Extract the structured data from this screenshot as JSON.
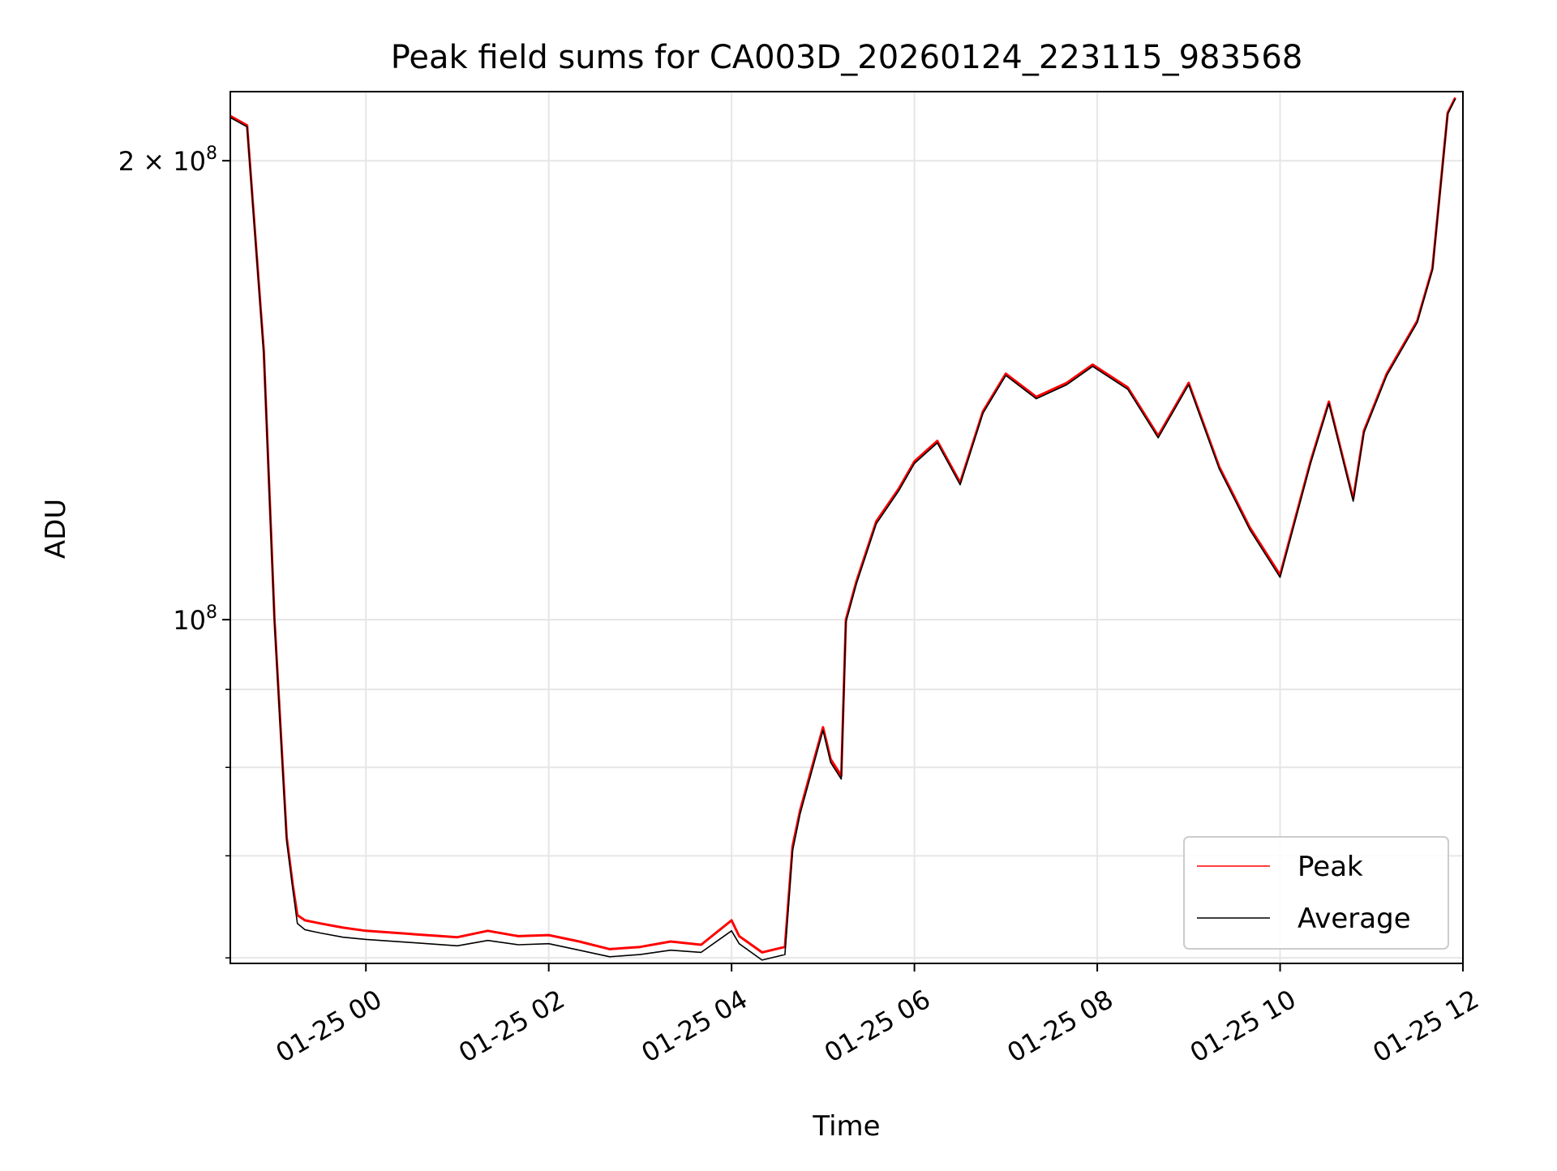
{
  "chart_data": {
    "type": "line",
    "title": "Peak field sums for CA003D_20260124_223115_983568",
    "xlabel": "Time",
    "ylabel": "ADU",
    "y_scale": "log",
    "grid": true,
    "legend_position": "lower right",
    "x_ticks": [
      "01-25 00",
      "01-25 02",
      "01-25 04",
      "01-25 06",
      "01-25 08",
      "01-25 10",
      "01-25 12"
    ],
    "y_tick_labels": [
      {
        "value": 200000000,
        "label_mantissa": "2",
        "label_times": "×",
        "label_base": "10",
        "label_exp": "8"
      },
      {
        "value": 100000000,
        "label_mantissa": "",
        "label_times": "",
        "label_base": "10",
        "label_exp": "8"
      }
    ],
    "series": [
      {
        "name": "Peak",
        "color": "#ff0000",
        "x": [
          "2026-01-24 22:31",
          "2026-01-24 22:42",
          "2026-01-24 22:53",
          "2026-01-24 23:00",
          "2026-01-24 23:08",
          "2026-01-24 23:12",
          "2026-01-24 23:15",
          "2026-01-24 23:20",
          "2026-01-24 23:30",
          "2026-01-24 23:45",
          "2026-01-25 00:00",
          "2026-01-25 00:30",
          "2026-01-25 01:00",
          "2026-01-25 01:20",
          "2026-01-25 01:40",
          "2026-01-25 02:00",
          "2026-01-25 02:20",
          "2026-01-25 02:40",
          "2026-01-25 03:00",
          "2026-01-25 03:20",
          "2026-01-25 03:40",
          "2026-01-25 04:00",
          "2026-01-25 04:05",
          "2026-01-25 04:20",
          "2026-01-25 04:35",
          "2026-01-25 04:40",
          "2026-01-25 04:45",
          "2026-01-25 05:00",
          "2026-01-25 05:05",
          "2026-01-25 05:12",
          "2026-01-25 05:15",
          "2026-01-25 05:22",
          "2026-01-25 05:35",
          "2026-01-25 05:50",
          "2026-01-25 06:00",
          "2026-01-25 06:15",
          "2026-01-25 06:30",
          "2026-01-25 06:45",
          "2026-01-25 07:00",
          "2026-01-25 07:20",
          "2026-01-25 07:40",
          "2026-01-25 07:57",
          "2026-01-25 08:20",
          "2026-01-25 08:40",
          "2026-01-25 09:00",
          "2026-01-25 09:20",
          "2026-01-25 09:40",
          "2026-01-25 10:00",
          "2026-01-25 10:20",
          "2026-01-25 10:32",
          "2026-01-25 10:48",
          "2026-01-25 10:55",
          "2026-01-25 11:10",
          "2026-01-25 11:30",
          "2026-01-25 11:40",
          "2026-01-25 11:50",
          "2026-01-25 11:55"
        ],
        "y": [
          214000000,
          211000000,
          150000000,
          100000000,
          72000000,
          67000000,
          64000000,
          63500000,
          63200000,
          62800000,
          62500000,
          62200000,
          61900000,
          62500000,
          62000000,
          62100000,
          61500000,
          60800000,
          61000000,
          61500000,
          61200000,
          63500000,
          62000000,
          60500000,
          61000000,
          71000000,
          75000000,
          85000000,
          81000000,
          79000000,
          100000000,
          106000000,
          116000000,
          122000000,
          127000000,
          131000000,
          123000000,
          137000000,
          145000000,
          140000000,
          143000000,
          147000000,
          142000000,
          132000000,
          143000000,
          126000000,
          115000000,
          107000000,
          127000000,
          139000000,
          120000000,
          133000000,
          145000000,
          157000000,
          170000000,
          215000000,
          220000000
        ]
      },
      {
        "name": "Average",
        "color": "#000000",
        "x": [
          "2026-01-24 22:31",
          "2026-01-24 22:42",
          "2026-01-24 22:53",
          "2026-01-24 23:00",
          "2026-01-24 23:08",
          "2026-01-24 23:12",
          "2026-01-24 23:15",
          "2026-01-24 23:20",
          "2026-01-24 23:30",
          "2026-01-24 23:45",
          "2026-01-25 00:00",
          "2026-01-25 00:30",
          "2026-01-25 01:00",
          "2026-01-25 01:20",
          "2026-01-25 01:40",
          "2026-01-25 02:00",
          "2026-01-25 02:20",
          "2026-01-25 02:40",
          "2026-01-25 03:00",
          "2026-01-25 03:20",
          "2026-01-25 03:40",
          "2026-01-25 04:00",
          "2026-01-25 04:05",
          "2026-01-25 04:20",
          "2026-01-25 04:35",
          "2026-01-25 04:40",
          "2026-01-25 04:45",
          "2026-01-25 05:00",
          "2026-01-25 05:05",
          "2026-01-25 05:12",
          "2026-01-25 05:15",
          "2026-01-25 05:22",
          "2026-01-25 05:35",
          "2026-01-25 05:50",
          "2026-01-25 06:00",
          "2026-01-25 06:15",
          "2026-01-25 06:30",
          "2026-01-25 06:45",
          "2026-01-25 07:00",
          "2026-01-25 07:20",
          "2026-01-25 07:40",
          "2026-01-25 07:57",
          "2026-01-25 08:20",
          "2026-01-25 08:40",
          "2026-01-25 09:00",
          "2026-01-25 09:20",
          "2026-01-25 09:40",
          "2026-01-25 10:00",
          "2026-01-25 10:20",
          "2026-01-25 10:32",
          "2026-01-25 10:48",
          "2026-01-25 10:55",
          "2026-01-25 11:10",
          "2026-01-25 11:30",
          "2026-01-25 11:40",
          "2026-01-25 11:50",
          "2026-01-25 11:55"
        ],
        "y": [
          213500000,
          210500000,
          149500000,
          99600000,
          71600000,
          66600000,
          63200000,
          62600000,
          62300000,
          61900000,
          61700000,
          61400000,
          61100000,
          61600000,
          61200000,
          61300000,
          60700000,
          60100000,
          60300000,
          60700000,
          60500000,
          62500000,
          61300000,
          59800000,
          60300000,
          70500000,
          74600000,
          84600000,
          80600000,
          78600000,
          99600000,
          105600000,
          115600000,
          121600000,
          126600000,
          130600000,
          122600000,
          136600000,
          144600000,
          139600000,
          142600000,
          146600000,
          141600000,
          131600000,
          142600000,
          125600000,
          114600000,
          106600000,
          126600000,
          138600000,
          119600000,
          132600000,
          144600000,
          156600000,
          169600000,
          214600000,
          219600000
        ]
      }
    ]
  }
}
